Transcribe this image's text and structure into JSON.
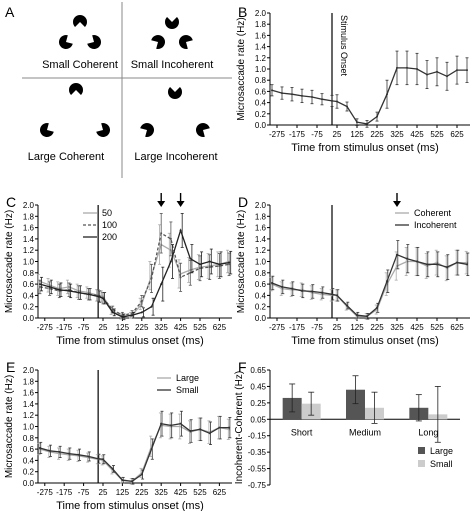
{
  "panel_a": {
    "letter": "A",
    "labels": [
      "Small Coherent",
      "Small Incoherent",
      "Large Coherent",
      "Large Incoherent"
    ]
  },
  "chart_data": [
    {
      "id": "B",
      "letter": "B",
      "type": "line",
      "xlabel": "Time from stimulus onset (ms)",
      "ylabel": "Microsaccade rate (Hz)",
      "xticks": [
        "-275",
        "-175",
        "-75",
        "25",
        "125",
        "225",
        "325",
        "425",
        "525",
        "625"
      ],
      "ylim": [
        0,
        2
      ],
      "yticks": [
        "0.0",
        "0.2",
        "0.4",
        "0.6",
        "0.8",
        "1.0",
        "1.2",
        "1.4",
        "1.6",
        "1.8",
        "2.0"
      ],
      "onset_label": "Stimulus Onset",
      "series": [
        {
          "x": [
            -300,
            -250,
            -200,
            -150,
            -100,
            -50,
            0,
            25,
            75,
            125,
            175,
            225,
            275,
            325,
            375,
            425,
            475,
            525,
            575,
            625,
            675
          ],
          "y": [
            0.62,
            0.57,
            0.55,
            0.52,
            0.5,
            0.46,
            0.43,
            0.42,
            0.33,
            0.05,
            0.02,
            0.15,
            0.55,
            1.02,
            1.02,
            1.0,
            0.9,
            0.95,
            0.87,
            0.98,
            0.98
          ],
          "err": [
            0.1,
            0.11,
            0.12,
            0.12,
            0.12,
            0.1,
            0.1,
            0.12,
            0.08,
            0.06,
            0.06,
            0.08,
            0.25,
            0.3,
            0.3,
            0.28,
            0.25,
            0.25,
            0.25,
            0.25,
            0.22
          ]
        }
      ]
    },
    {
      "id": "C",
      "letter": "C",
      "type": "line",
      "xlabel": "Time from stimulus onset (ms)",
      "ylabel": "Microsaccade rate (Hz)",
      "xticks": [
        "-275",
        "-175",
        "-75",
        "25",
        "125",
        "225",
        "325",
        "425",
        "525",
        "625"
      ],
      "ylim": [
        0,
        2
      ],
      "yticks": [
        "0.0",
        "0.2",
        "0.4",
        "0.6",
        "0.8",
        "1.0",
        "1.2",
        "1.4",
        "1.6",
        "1.8",
        "2.0"
      ],
      "legend_position": "top-left",
      "arrows_at": [
        325,
        425
      ],
      "series": [
        {
          "name": "50",
          "color": "#aaaaaa",
          "dash": "",
          "x": [
            -300,
            -250,
            -200,
            -150,
            -100,
            -50,
            0,
            25,
            75,
            125,
            175,
            225,
            275,
            325,
            375,
            425,
            475,
            525,
            575,
            625,
            675
          ],
          "y": [
            0.65,
            0.58,
            0.52,
            0.55,
            0.48,
            0.45,
            0.4,
            0.38,
            0.12,
            0.03,
            0.05,
            0.25,
            0.75,
            1.3,
            1.2,
            0.78,
            0.85,
            0.9,
            0.92,
            0.95,
            1.0
          ],
          "err": [
            0.12,
            0.12,
            0.12,
            0.12,
            0.12,
            0.1,
            0.1,
            0.1,
            0.06,
            0.05,
            0.05,
            0.1,
            0.25,
            0.35,
            0.3,
            0.25,
            0.22,
            0.22,
            0.22,
            0.22,
            0.2
          ]
        },
        {
          "name": "100",
          "color": "#555555",
          "dash": "3,2",
          "x": [
            -300,
            -250,
            -200,
            -150,
            -100,
            -50,
            0,
            25,
            75,
            125,
            175,
            225,
            275,
            325,
            375,
            425,
            475,
            525,
            575,
            625,
            675
          ],
          "y": [
            0.55,
            0.52,
            0.48,
            0.5,
            0.45,
            0.42,
            0.4,
            0.35,
            0.15,
            0.05,
            0.08,
            0.3,
            0.7,
            1.5,
            1.4,
            0.72,
            0.8,
            0.88,
            0.9,
            0.92,
            0.95
          ],
          "err": [
            0.12,
            0.12,
            0.12,
            0.12,
            0.12,
            0.1,
            0.1,
            0.1,
            0.06,
            0.05,
            0.05,
            0.1,
            0.25,
            0.35,
            0.3,
            0.25,
            0.22,
            0.22,
            0.22,
            0.22,
            0.2
          ]
        },
        {
          "name": "200",
          "color": "#222222",
          "dash": "",
          "x": [
            -300,
            -250,
            -200,
            -150,
            -100,
            -50,
            0,
            25,
            75,
            125,
            175,
            225,
            275,
            325,
            375,
            425,
            475,
            525,
            575,
            625,
            675
          ],
          "y": [
            0.6,
            0.55,
            0.5,
            0.48,
            0.45,
            0.42,
            0.38,
            0.35,
            0.1,
            0.02,
            0.05,
            0.1,
            0.2,
            0.6,
            1.0,
            1.55,
            1.05,
            0.95,
            1.0,
            0.95,
            0.98
          ],
          "err": [
            0.12,
            0.12,
            0.12,
            0.12,
            0.12,
            0.1,
            0.1,
            0.1,
            0.06,
            0.05,
            0.05,
            0.08,
            0.15,
            0.3,
            0.3,
            0.3,
            0.25,
            0.22,
            0.22,
            0.22,
            0.2
          ]
        }
      ]
    },
    {
      "id": "D",
      "letter": "D",
      "type": "line",
      "xlabel": "Time from stimulus onset (ms)",
      "ylabel": "Microsaccade rate (Hz)",
      "xticks": [
        "-275",
        "-175",
        "-75",
        "25",
        "125",
        "225",
        "325",
        "425",
        "525",
        "625"
      ],
      "ylim": [
        0,
        2
      ],
      "yticks": [
        "0.0",
        "0.2",
        "0.4",
        "0.6",
        "0.8",
        "1.0",
        "1.2",
        "1.4",
        "1.6",
        "1.8",
        "2.0"
      ],
      "legend_position": "top-right",
      "arrows_at": [
        325
      ],
      "series": [
        {
          "name": "Coherent",
          "color": "#aaaaaa",
          "dash": "",
          "x": [
            -300,
            -250,
            -200,
            -150,
            -100,
            -50,
            0,
            25,
            75,
            125,
            175,
            225,
            275,
            325,
            375,
            425,
            475,
            525,
            575,
            625,
            675
          ],
          "y": [
            0.6,
            0.52,
            0.5,
            0.5,
            0.45,
            0.42,
            0.4,
            0.4,
            0.2,
            0.03,
            0.03,
            0.15,
            0.6,
            0.92,
            1.0,
            1.0,
            0.92,
            0.98,
            0.88,
            0.98,
            0.98
          ],
          "err": [
            0.12,
            0.12,
            0.12,
            0.12,
            0.12,
            0.1,
            0.1,
            0.1,
            0.06,
            0.05,
            0.05,
            0.08,
            0.2,
            0.25,
            0.25,
            0.25,
            0.22,
            0.22,
            0.22,
            0.22,
            0.2
          ]
        },
        {
          "name": "Incoherent",
          "color": "#333333",
          "dash": "",
          "x": [
            -300,
            -250,
            -200,
            -150,
            -100,
            -50,
            0,
            25,
            75,
            125,
            175,
            225,
            275,
            325,
            375,
            425,
            475,
            525,
            575,
            625,
            675
          ],
          "y": [
            0.62,
            0.55,
            0.52,
            0.48,
            0.47,
            0.45,
            0.42,
            0.4,
            0.22,
            0.05,
            0.03,
            0.18,
            0.65,
            1.12,
            1.05,
            1.0,
            0.95,
            0.95,
            0.9,
            0.98,
            0.95
          ],
          "err": [
            0.12,
            0.12,
            0.12,
            0.12,
            0.12,
            0.1,
            0.1,
            0.1,
            0.06,
            0.05,
            0.05,
            0.08,
            0.2,
            0.25,
            0.25,
            0.25,
            0.22,
            0.22,
            0.22,
            0.22,
            0.2
          ]
        }
      ]
    },
    {
      "id": "E",
      "letter": "E",
      "type": "line",
      "xlabel": "Time from stimulus onset (ms)",
      "ylabel": "Microsaccade rate (Hz)",
      "xticks": [
        "-275",
        "-175",
        "-75",
        "25",
        "125",
        "225",
        "325",
        "425",
        "525",
        "625"
      ],
      "ylim": [
        0,
        2
      ],
      "yticks": [
        "0.0",
        "0.2",
        "0.4",
        "0.6",
        "0.8",
        "1.0",
        "1.2",
        "1.4",
        "1.6",
        "1.8",
        "2.0"
      ],
      "legend_position": "top-right",
      "series": [
        {
          "name": "Large",
          "color": "#aaaaaa",
          "dash": "",
          "x": [
            -300,
            -250,
            -200,
            -150,
            -100,
            -50,
            0,
            25,
            75,
            125,
            175,
            225,
            275,
            325,
            375,
            425,
            475,
            525,
            575,
            625,
            675
          ],
          "y": [
            0.6,
            0.55,
            0.52,
            0.5,
            0.48,
            0.45,
            0.42,
            0.4,
            0.22,
            0.05,
            0.03,
            0.18,
            0.65,
            1.02,
            1.0,
            1.0,
            0.9,
            0.95,
            0.9,
            0.98,
            0.95
          ],
          "err": [
            0.1,
            0.1,
            0.1,
            0.1,
            0.1,
            0.08,
            0.08,
            0.08,
            0.06,
            0.05,
            0.05,
            0.08,
            0.18,
            0.22,
            0.22,
            0.22,
            0.2,
            0.2,
            0.2,
            0.2,
            0.18
          ]
        },
        {
          "name": "Small",
          "color": "#333333",
          "dash": "",
          "x": [
            -300,
            -250,
            -200,
            -150,
            -100,
            -50,
            0,
            25,
            75,
            125,
            175,
            225,
            275,
            325,
            375,
            425,
            475,
            525,
            575,
            625,
            675
          ],
          "y": [
            0.62,
            0.57,
            0.55,
            0.52,
            0.5,
            0.47,
            0.43,
            0.42,
            0.25,
            0.05,
            0.03,
            0.15,
            0.6,
            1.05,
            1.02,
            1.05,
            0.92,
            0.95,
            0.88,
            0.98,
            0.98
          ],
          "err": [
            0.1,
            0.1,
            0.1,
            0.1,
            0.1,
            0.08,
            0.08,
            0.08,
            0.06,
            0.05,
            0.05,
            0.08,
            0.18,
            0.22,
            0.22,
            0.22,
            0.2,
            0.2,
            0.2,
            0.2,
            0.18
          ]
        }
      ]
    },
    {
      "id": "F",
      "letter": "F",
      "type": "bar",
      "ylabel": "Incoherent-Coherent (Hz)",
      "categories": [
        "Short",
        "Medium",
        "Long"
      ],
      "ylim": [
        -0.75,
        0.65
      ],
      "yticks": [
        "-0.75",
        "-0.55",
        "-0.35",
        "-0.15",
        "0.05",
        "0.25",
        "0.45",
        "0.65"
      ],
      "legend_position": "bottom-right",
      "series": [
        {
          "name": "Large",
          "color": "#555555",
          "values": [
            0.31,
            0.41,
            0.19
          ],
          "err": [
            0.17,
            0.17,
            0.16
          ]
        },
        {
          "name": "Small",
          "color": "#cccccc",
          "values": [
            0.24,
            0.19,
            0.11
          ],
          "err": [
            0.14,
            0.19,
            0.34
          ]
        }
      ]
    }
  ]
}
